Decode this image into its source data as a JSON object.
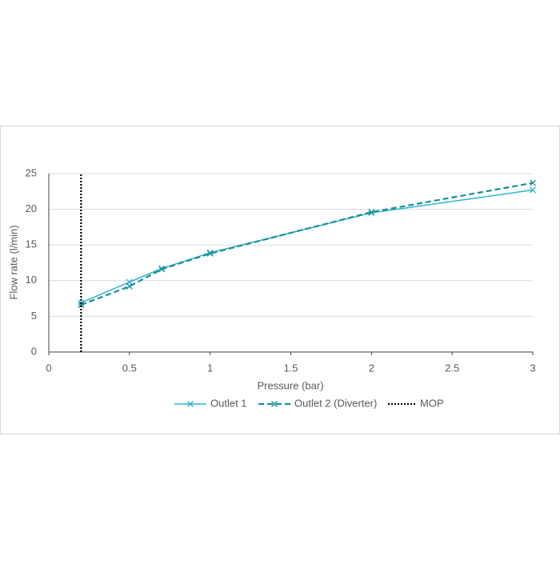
{
  "chart_data": {
    "type": "line",
    "x_label": "Pressure (bar)",
    "y_label": "Flow rate (l/min)",
    "xlim": [
      0,
      3
    ],
    "xticks": [
      0,
      0.5,
      1,
      1.5,
      2,
      2.5,
      3
    ],
    "ylim": [
      0,
      25
    ],
    "yticks": [
      0,
      5,
      10,
      15,
      20,
      25
    ],
    "grid": true,
    "legend": "bottom",
    "series": [
      {
        "name": "Outlet 1",
        "color": "#2fb3cf",
        "line_style": "solid",
        "marker": "x",
        "x": [
          0.2,
          0.5,
          0.7,
          1,
          2,
          3
        ],
        "values": [
          6.9,
          9.8,
          11.7,
          13.9,
          19.5,
          22.7
        ]
      },
      {
        "name": "Outlet 2 (Diverter)",
        "color": "#168f98",
        "line_style": "dashed",
        "marker": "x",
        "x": [
          0.2,
          0.5,
          0.7,
          1,
          2,
          3
        ],
        "values": [
          6.6,
          9.2,
          11.6,
          13.8,
          19.6,
          23.7
        ]
      },
      {
        "name": "MOP",
        "color": "#000000",
        "line_style": "dotted",
        "marker": "none",
        "x": [
          0.2,
          0.2
        ],
        "values": [
          0,
          25
        ]
      }
    ]
  }
}
